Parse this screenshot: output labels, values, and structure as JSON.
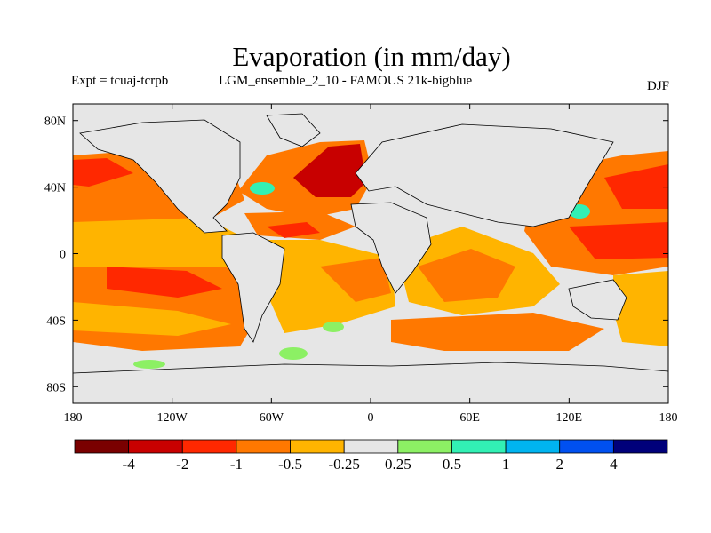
{
  "title": "Evaporation (in mm/day)",
  "subtitle_left": "Expt = tcuaj-tcrpb",
  "subtitle_center": "LGM_ensemble_2_10 - FAMOUS 21k-bigblue",
  "subtitle_right": "DJF",
  "axes": {
    "x_ticks": [
      "180",
      "120W",
      "60W",
      "0",
      "60E",
      "120E",
      "180"
    ],
    "x_values": [
      -180,
      -120,
      -60,
      0,
      60,
      120,
      180
    ],
    "y_ticks": [
      "80N",
      "40N",
      "0",
      "40S",
      "80S"
    ],
    "y_values": [
      80,
      40,
      0,
      -40,
      -80
    ],
    "lon_range": [
      -180,
      180
    ],
    "lat_range": [
      -90,
      90
    ]
  },
  "colorbar": {
    "labels": [
      "-4",
      "-2",
      "-1",
      "-0.5",
      "-0.25",
      "0.25",
      "0.5",
      "1",
      "2",
      "4"
    ],
    "colors": [
      "#7a0000",
      "#c80000",
      "#ff2800",
      "#ff7800",
      "#ffb400",
      "#e6e6e6",
      "#8cf064",
      "#32f0b4",
      "#00b4f0",
      "#0050f0",
      "#00007a"
    ]
  },
  "colors": {
    "background_field": "#e6e6e6",
    "coast": "#000000"
  }
}
